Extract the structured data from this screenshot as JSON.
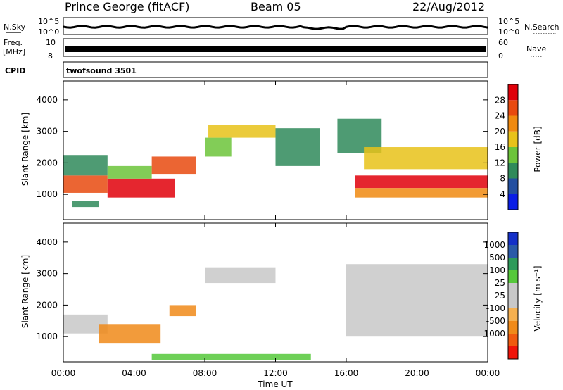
{
  "header": {
    "station": "Prince George (fitACF)",
    "beam": "Beam 05",
    "date": "22/Aug/2012"
  },
  "strip_labels": {
    "nsky": "N.Sky",
    "nsearch": "N.Search",
    "freq_line1": "Freq.",
    "freq_line2": "[MHz]",
    "nave": "Nave",
    "cpid": "CPID",
    "cpid_value": "twofsound 3501",
    "noise_ticks": [
      "10^5",
      "10^0"
    ],
    "freq_ticks": [
      "10",
      "8"
    ],
    "nave_ticks": [
      "60",
      "0"
    ]
  },
  "colors": {
    "power_scale": [
      "#0a1ee6",
      "#234fa0",
      "#2f8a5a",
      "#6cc43a",
      "#e8c219",
      "#f08a10",
      "#e84a0f",
      "#e0000a"
    ],
    "velocity_scale": [
      "#f0140a",
      "#f05a0f",
      "#f08a19",
      "#f5b050",
      "#c8c8c8",
      "#c8c8c8",
      "#55c83a",
      "#2e9a5a",
      "#2a5aa8",
      "#1430c8"
    ]
  },
  "chart_data": [
    {
      "type": "heatmap",
      "name": "power-panel",
      "ylabel": "Slant Range [km]",
      "ylim": [
        200,
        4600
      ],
      "yticks": [
        "4000",
        "3000",
        "2000",
        "1000"
      ],
      "xlim": [
        0,
        24
      ],
      "colorbar": {
        "label": "Power [dB]",
        "ticks": [
          "28",
          "24",
          "20",
          "16",
          "12",
          "8",
          "4"
        ],
        "range": [
          0,
          32
        ]
      },
      "echo_regions": [
        {
          "t0": 0.0,
          "t1": 2.5,
          "r0": 1050,
          "r1": 1600,
          "level": 24
        },
        {
          "t0": 0.0,
          "t1": 2.5,
          "r0": 1600,
          "r1": 2250,
          "level": 10
        },
        {
          "t0": 2.5,
          "t1": 6.3,
          "r0": 900,
          "r1": 1500,
          "level": 28
        },
        {
          "t0": 2.5,
          "t1": 5.0,
          "r0": 1500,
          "r1": 1900,
          "level": 14
        },
        {
          "t0": 5.0,
          "t1": 7.5,
          "r0": 1650,
          "r1": 2200,
          "level": 24
        },
        {
          "t0": 0.5,
          "t1": 2.0,
          "r0": 600,
          "r1": 800,
          "level": 8
        },
        {
          "t0": 8.0,
          "t1": 9.5,
          "r0": 2200,
          "r1": 2800,
          "level": 14
        },
        {
          "t0": 8.2,
          "t1": 12.0,
          "r0": 2800,
          "r1": 3200,
          "level": 16
        },
        {
          "t0": 12.0,
          "t1": 14.5,
          "r0": 1900,
          "r1": 3100,
          "level": 10
        },
        {
          "t0": 15.5,
          "t1": 18.0,
          "r0": 2300,
          "r1": 3400,
          "level": 8
        },
        {
          "t0": 17.0,
          "t1": 24.0,
          "r0": 1800,
          "r1": 2500,
          "level": 16
        },
        {
          "t0": 16.5,
          "t1": 24.0,
          "r0": 1200,
          "r1": 1600,
          "level": 28
        },
        {
          "t0": 16.5,
          "t1": 24.0,
          "r0": 900,
          "r1": 1200,
          "level": 20
        }
      ]
    },
    {
      "type": "heatmap",
      "name": "velocity-panel",
      "ylabel": "Slant Range [km]",
      "ylim": [
        200,
        4600
      ],
      "yticks": [
        "4000",
        "3000",
        "2000",
        "1000"
      ],
      "xlim": [
        0,
        24
      ],
      "xticks": [
        "00:00",
        "04:00",
        "08:00",
        "12:00",
        "16:00",
        "20:00",
        "00:00"
      ],
      "xlabel": "Time UT",
      "colorbar": {
        "label": "Velocity [m s⁻¹]",
        "ticks": [
          "1000",
          "500",
          "100",
          "25",
          "-25",
          "-100",
          "-500",
          "-1000"
        ]
      },
      "echo_regions": [
        {
          "t0": 0.0,
          "t1": 2.5,
          "r0": 1100,
          "r1": 1700,
          "level": 0
        },
        {
          "t0": 2.0,
          "t1": 5.5,
          "r0": 800,
          "r1": 1400,
          "level": -300
        },
        {
          "t0": 6.0,
          "t1": 7.5,
          "r0": 1650,
          "r1": 2000,
          "level": -200
        },
        {
          "t0": 8.0,
          "t1": 12.0,
          "r0": 2700,
          "r1": 3200,
          "level": 0
        },
        {
          "t0": 16.0,
          "t1": 24.0,
          "r0": 1000,
          "r1": 3300,
          "level": 0
        },
        {
          "t0": 5.0,
          "t1": 14.0,
          "r0": 250,
          "r1": 450,
          "level": 60
        }
      ]
    }
  ]
}
